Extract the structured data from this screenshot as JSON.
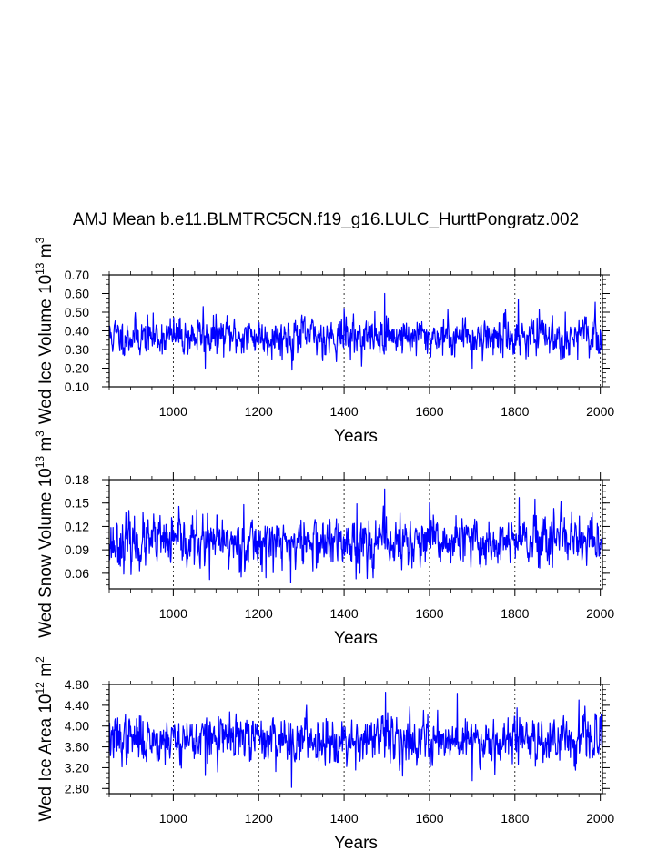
{
  "title": "AMJ Mean b.e11.BLMTRC5CN.f19_g16.LULC_HurttPongratz.002",
  "chart_data": [
    {
      "type": "line",
      "title": "",
      "xlabel": "Years",
      "ylabel_main": "Wed Ice Volume 10",
      "ylabel_sup": "13",
      "ylabel_unit": " m",
      "ylabel_unit_sup": "3",
      "xlim": [
        850,
        2005
      ],
      "ylim": [
        0.1,
        0.7
      ],
      "xticks": [
        1000,
        1200,
        1400,
        1600,
        1800,
        2000
      ],
      "xtick_labels": [
        "1000",
        "1200",
        "1400",
        "1600",
        "1800",
        "2000"
      ],
      "yticks": [
        0.1,
        0.2,
        0.3,
        0.4,
        0.5,
        0.6,
        0.7
      ],
      "ytick_labels": [
        "0.10",
        "0.20",
        "0.30",
        "0.40",
        "0.50",
        "0.60",
        "0.70"
      ],
      "color": "#0000ff",
      "grid": "vertical dashed at x ticks",
      "mean": 0.37,
      "std": 0.05,
      "seed": 11,
      "series_x_start": 850,
      "series_x_end": 2005,
      "notable_points": [
        [
          1495,
          0.6
        ],
        [
          1808,
          0.57
        ],
        [
          1070,
          0.53
        ],
        [
          1278,
          0.19
        ],
        [
          1075,
          0.2
        ],
        [
          1700,
          0.2
        ],
        [
          1400,
          0.52
        ]
      ]
    },
    {
      "type": "line",
      "title": "",
      "xlabel": "Years",
      "ylabel_main": "Wed Snow Volume 10",
      "ylabel_sup": "13",
      "ylabel_unit": " m",
      "ylabel_unit_sup": "3",
      "xlim": [
        850,
        2005
      ],
      "ylim": [
        0.04,
        0.18
      ],
      "xticks": [
        1000,
        1200,
        1400,
        1600,
        1800,
        2000
      ],
      "xtick_labels": [
        "1000",
        "1200",
        "1400",
        "1600",
        "1800",
        "2000"
      ],
      "yticks": [
        0.06,
        0.09,
        0.12,
        0.15,
        0.18
      ],
      "ytick_labels": [
        "0.06",
        "0.09",
        "0.12",
        "0.15",
        "0.18"
      ],
      "color": "#0000ff",
      "grid": "vertical dashed at x ticks",
      "mean": 0.099,
      "std": 0.016,
      "seed": 23,
      "series_x_start": 850,
      "series_x_end": 2005,
      "notable_points": [
        [
          1495,
          0.168
        ],
        [
          1810,
          0.157
        ],
        [
          1165,
          0.148
        ],
        [
          1275,
          0.048
        ],
        [
          1085,
          0.052
        ],
        [
          1430,
          0.149
        ],
        [
          1600,
          0.15
        ]
      ]
    },
    {
      "type": "line",
      "title": "",
      "xlabel": "Years",
      "ylabel_main": "Wed Ice Area 10",
      "ylabel_sup": "12",
      "ylabel_unit": " m",
      "ylabel_unit_sup": "2",
      "xlim": [
        850,
        2005
      ],
      "ylim": [
        2.7,
        4.8
      ],
      "xticks": [
        1000,
        1200,
        1400,
        1600,
        1800,
        2000
      ],
      "xtick_labels": [
        "1000",
        "1200",
        "1400",
        "1600",
        "1800",
        "2000"
      ],
      "yticks": [
        2.8,
        3.2,
        3.6,
        4.0,
        4.4,
        4.8
      ],
      "ytick_labels": [
        "2.80",
        "3.20",
        "3.60",
        "4.00",
        "4.40",
        "4.80"
      ],
      "color": "#0000ff",
      "grid": "vertical dashed at x ticks",
      "mean": 3.75,
      "std": 0.22,
      "seed": 37,
      "series_x_start": 850,
      "series_x_end": 2005,
      "notable_points": [
        [
          1497,
          4.65
        ],
        [
          1665,
          4.63
        ],
        [
          1805,
          4.35
        ],
        [
          1277,
          2.82
        ],
        [
          1700,
          2.95
        ],
        [
          1075,
          3.05
        ],
        [
          1950,
          4.5
        ]
      ]
    }
  ]
}
